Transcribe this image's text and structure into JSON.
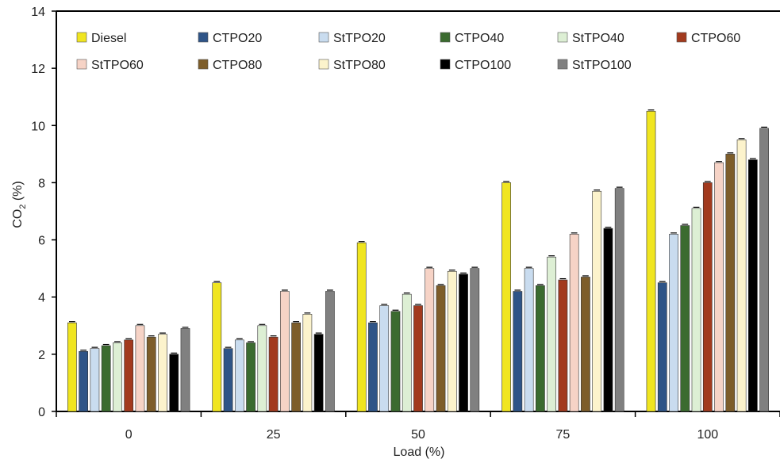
{
  "chart_data": {
    "type": "bar",
    "title": "",
    "xlabel": "Load (%)",
    "ylabel": "CO",
    "ylabel_sub": "2",
    "ylabel_suffix": " (%)",
    "categories": [
      "0",
      "25",
      "50",
      "75",
      "100"
    ],
    "ylim": [
      0,
      14
    ],
    "yticks": [
      "0",
      "2",
      "4",
      "6",
      "8",
      "10",
      "12",
      "14"
    ],
    "grid": false,
    "legend_position": "top",
    "series": [
      {
        "name": "Diesel",
        "color": "#f0e520",
        "values": [
          3.1,
          4.5,
          5.9,
          8.0,
          10.5
        ]
      },
      {
        "name": "CTPO20",
        "color": "#2e5487",
        "values": [
          2.1,
          2.2,
          3.1,
          4.2,
          4.5
        ]
      },
      {
        "name": "StTPO20",
        "color": "#c9dcef",
        "values": [
          2.2,
          2.5,
          3.7,
          5.0,
          6.2
        ]
      },
      {
        "name": "CTPO40",
        "color": "#3b6b2f",
        "values": [
          2.3,
          2.4,
          3.5,
          4.4,
          6.5
        ]
      },
      {
        "name": "StTPO40",
        "color": "#ddefd4",
        "values": [
          2.4,
          3.0,
          4.1,
          5.4,
          7.1
        ]
      },
      {
        "name": "CTPO60",
        "color": "#a23a1e",
        "values": [
          2.5,
          2.6,
          3.7,
          4.6,
          8.0
        ]
      },
      {
        "name": "StTPO60",
        "color": "#f6d3c6",
        "values": [
          3.0,
          4.2,
          5.0,
          6.2,
          8.7
        ]
      },
      {
        "name": "CTPO80",
        "color": "#7d5d2a",
        "values": [
          2.6,
          3.1,
          4.4,
          4.7,
          9.0
        ]
      },
      {
        "name": "StTPO80",
        "color": "#fcf3cc",
        "values": [
          2.7,
          3.4,
          4.9,
          7.7,
          9.5
        ]
      },
      {
        "name": "CTPO100",
        "color": "#000000",
        "values": [
          2.0,
          2.7,
          4.8,
          6.4,
          8.8
        ]
      },
      {
        "name": "StTPO100",
        "color": "#808080",
        "values": [
          2.9,
          4.2,
          5.0,
          7.8,
          9.9
        ]
      }
    ]
  }
}
